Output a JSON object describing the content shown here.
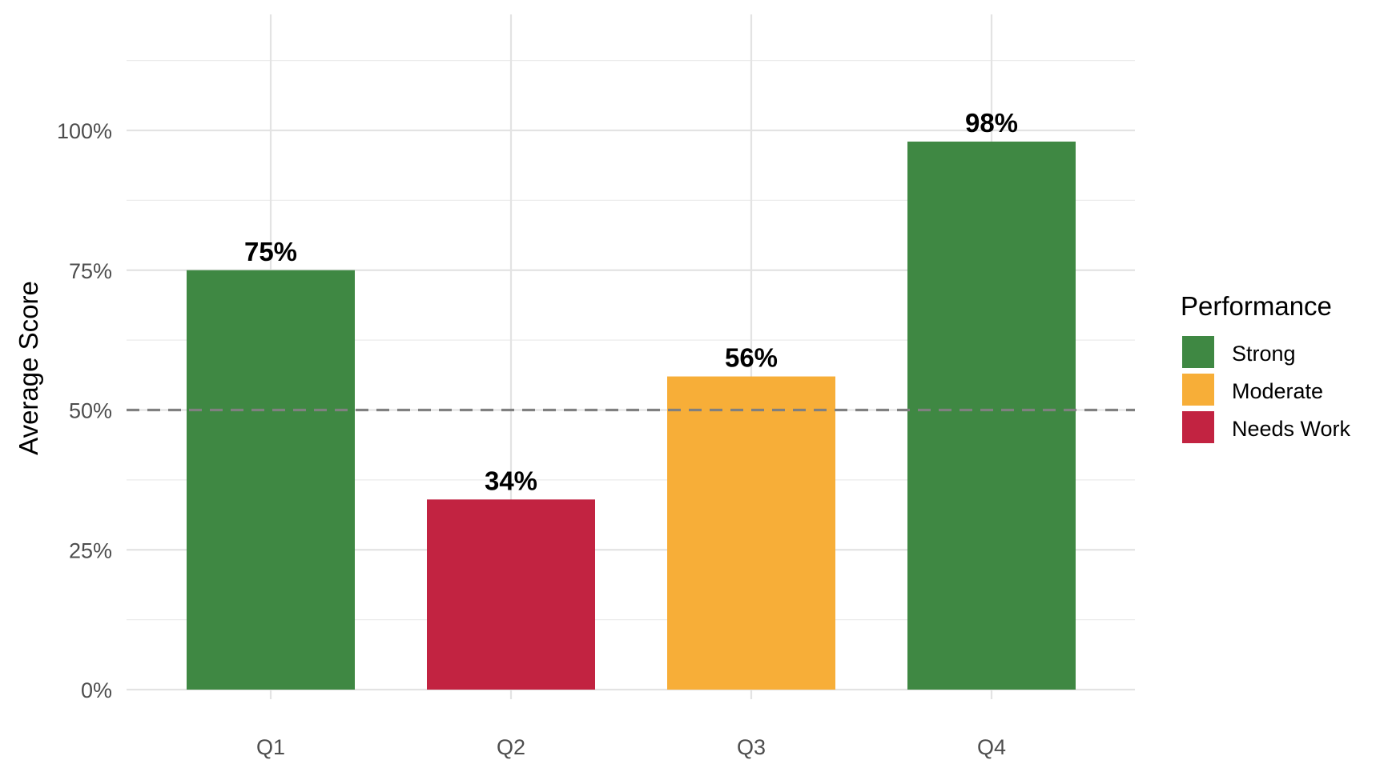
{
  "chart_data": {
    "type": "bar",
    "categories": [
      "Q1",
      "Q2",
      "Q3",
      "Q4"
    ],
    "values": [
      75,
      34,
      56,
      98
    ],
    "value_unit": "%",
    "data_labels": [
      "75%",
      "34%",
      "56%",
      "98%"
    ],
    "bar_groups": [
      "Strong",
      "Needs Work",
      "Moderate",
      "Strong"
    ],
    "title": "",
    "xlabel": "",
    "ylabel": "Average Score",
    "ylim": [
      0,
      110
    ],
    "yticks": [
      0,
      25,
      50,
      75,
      100
    ],
    "ytick_labels": [
      "0%",
      "25%",
      "50%",
      "75%",
      "100%"
    ],
    "reference_line": {
      "value": 50,
      "style": "dashed",
      "color": "#808080"
    },
    "grid": true,
    "legend": {
      "title": "Performance",
      "position": "right",
      "items": [
        {
          "name": "Strong",
          "color": "#2E7D32"
        },
        {
          "name": "Moderate",
          "color": "#F9A825"
        },
        {
          "name": "Needs Work",
          "color": "#C2183C"
        }
      ]
    },
    "colors": {
      "Strong": "#3F8843",
      "Moderate": "#F7AE38",
      "Needs Work": "#C22341"
    }
  }
}
